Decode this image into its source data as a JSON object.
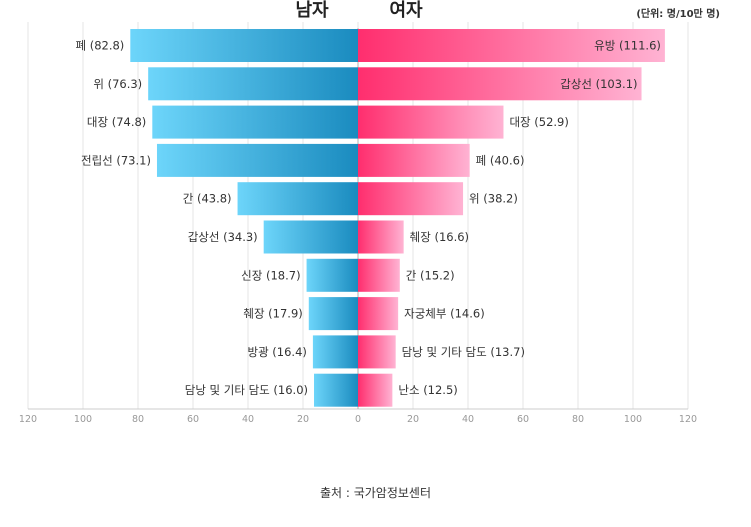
{
  "chart_data": {
    "type": "bar",
    "orientation": "horizontal-butterfly",
    "unit_label": "(단위: 명/10만 명)",
    "x_ticks": [
      120,
      100,
      80,
      60,
      40,
      20,
      0,
      20,
      40,
      60,
      80,
      100,
      120
    ],
    "xlim": [
      -120,
      120
    ],
    "series": [
      {
        "name": "남자",
        "side": "left",
        "categories": [
          "폐",
          "위",
          "대장",
          "전립선",
          "간",
          "갑상선",
          "신장",
          "췌장",
          "방광",
          "담낭 및 기타 담도"
        ],
        "values": [
          82.8,
          76.3,
          74.8,
          73.1,
          43.8,
          34.3,
          18.7,
          17.9,
          16.4,
          16.0
        ],
        "labels": [
          "폐 (82.8)",
          "위 (76.3)",
          "대장 (74.8)",
          "전립선 (73.1)",
          "간 (43.8)",
          "갑상선 (34.3)",
          "신장 (18.7)",
          "췌장 (17.9)",
          "방광 (16.4)",
          "담낭 및 기타 담도 (16.0)"
        ],
        "color_start": "#6dd5fa",
        "color_end": "#1a8bbf"
      },
      {
        "name": "여자",
        "side": "right",
        "categories": [
          "유방",
          "갑상선",
          "대장",
          "폐",
          "위",
          "췌장",
          "간",
          "자궁체부",
          "담낭 및 기타 담도",
          "난소"
        ],
        "values": [
          111.6,
          103.1,
          52.9,
          40.6,
          38.2,
          16.6,
          15.2,
          14.6,
          13.7,
          12.5
        ],
        "labels": [
          "유방 (111.6)",
          "갑상선 (103.1)",
          "대장 (52.9)",
          "폐 (40.6)",
          "위 (38.2)",
          "췌장 (16.6)",
          "간 (15.2)",
          "자궁체부 (14.6)",
          "담낭 및 기타 담도 (13.7)",
          "난소 (12.5)"
        ],
        "color_start": "#ff2e6e",
        "color_end": "#ffb3d3"
      }
    ]
  },
  "source": "출처 : 국가암정보센터"
}
